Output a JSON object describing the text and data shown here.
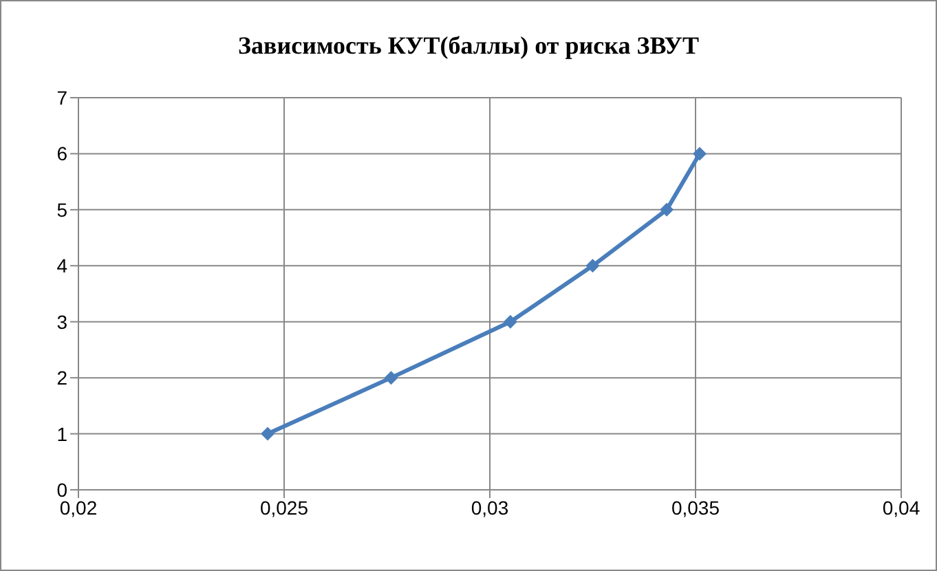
{
  "chart_data": {
    "type": "line",
    "title": "Зависимость КУТ(баллы) от риска ЗВУТ",
    "x": [
      0.0246,
      0.0276,
      0.0305,
      0.0325,
      0.0343,
      0.0351
    ],
    "series": [
      {
        "color": "#4a7ebb",
        "values": [
          1,
          2,
          3,
          4,
          5,
          6
        ]
      }
    ],
    "xlim": [
      0.02,
      0.04
    ],
    "xticks": [
      {
        "value": 0.02,
        "label": "0,02"
      },
      {
        "value": 0.025,
        "label": "0,025"
      },
      {
        "value": 0.03,
        "label": "0,03"
      },
      {
        "value": 0.035,
        "label": "0,035"
      },
      {
        "value": 0.04,
        "label": "0,04"
      }
    ],
    "ylim": [
      0,
      7
    ],
    "yticks": [
      0,
      1,
      2,
      3,
      4,
      5,
      6,
      7
    ],
    "grid": true,
    "legend": false,
    "marker": "diamond",
    "line_style": "solid"
  }
}
